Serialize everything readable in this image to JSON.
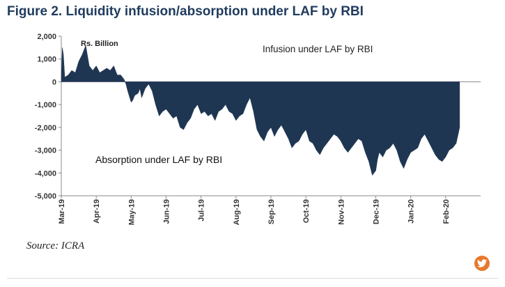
{
  "figure_title": "Figure 2. Liquidity infusion/absorption under LAF by RBI",
  "source": "Source: ICRA",
  "share_icon": "twitter-icon",
  "colors": {
    "area": "#1f3653",
    "title": "#1f3b5e",
    "share": "#e8792b"
  },
  "chart_data": {
    "type": "area",
    "unit_label": "Rs. Billion",
    "annotations": [
      "Infusion under LAF by RBI",
      "Absorption under LAF by RBI"
    ],
    "ylim": [
      -5000,
      2000
    ],
    "y_ticks": [
      "2,000",
      "1,000",
      "0",
      "-1,000",
      "-2,000",
      "-3,000",
      "-4,000",
      "-5,000"
    ],
    "y_tick_values": [
      2000,
      1000,
      0,
      -1000,
      -2000,
      -3000,
      -4000,
      -5000
    ],
    "x_ticks": [
      "Mar-19",
      "Apr-19",
      "May-19",
      "Jun-19",
      "Jul-19",
      "Aug-19",
      "Sep-19",
      "Oct-19",
      "Nov-19",
      "Dec-19",
      "Jan-20",
      "Feb-20"
    ],
    "grid": "none",
    "series": [
      {
        "x": [
          0,
          0.03,
          0.06,
          0.1,
          0.2,
          0.3,
          0.4,
          0.5,
          0.6,
          0.7,
          0.8,
          0.9,
          1.0,
          1.1,
          1.2,
          1.3,
          1.4,
          1.5,
          1.6,
          1.7,
          1.8,
          1.85,
          1.9,
          2.0,
          2.05,
          2.1,
          2.2,
          2.25,
          2.3,
          2.4,
          2.5,
          2.6,
          2.7,
          2.8,
          2.9,
          3.0,
          3.1,
          3.2,
          3.3,
          3.4,
          3.5,
          3.6,
          3.7,
          3.8,
          3.9,
          4.0,
          4.1,
          4.2,
          4.3,
          4.4,
          4.5,
          4.6,
          4.7,
          4.8,
          4.9,
          5.0,
          5.1,
          5.2,
          5.3,
          5.4,
          5.5,
          5.6,
          5.7,
          5.8,
          5.9,
          6.0,
          6.1,
          6.2,
          6.3,
          6.4,
          6.5,
          6.6,
          6.7,
          6.8,
          6.9,
          7.0,
          7.1,
          7.2,
          7.3,
          7.4,
          7.5,
          7.6,
          7.7,
          7.8,
          7.9,
          8.0,
          8.1,
          8.2,
          8.3,
          8.4,
          8.5,
          8.6,
          8.7,
          8.8,
          8.9,
          9.0,
          9.05,
          9.1,
          9.2,
          9.3,
          9.4,
          9.5,
          9.6,
          9.7,
          9.8,
          9.9,
          10.0,
          10.1,
          10.2,
          10.3,
          10.4,
          10.5,
          10.6,
          10.7,
          10.8,
          10.9,
          11.0,
          11.1,
          11.2,
          11.3,
          11.4
        ],
        "y": [
          300,
          1500,
          1200,
          200,
          300,
          500,
          400,
          900,
          1200,
          1600,
          700,
          500,
          700,
          400,
          500,
          600,
          500,
          700,
          300,
          300,
          100,
          -100,
          -400,
          -900,
          -800,
          -600,
          -500,
          -300,
          -700,
          -300,
          -100,
          -400,
          -1000,
          -1500,
          -1300,
          -1200,
          -1400,
          -1600,
          -1500,
          -2000,
          -2100,
          -1800,
          -1600,
          -1200,
          -1000,
          -1400,
          -1300,
          -1500,
          -1400,
          -1700,
          -1300,
          -1200,
          -1000,
          -1300,
          -1400,
          -1700,
          -1500,
          -1400,
          -1000,
          -700,
          -1300,
          -2100,
          -2400,
          -2600,
          -2200,
          -2000,
          -2400,
          -2100,
          -1900,
          -2200,
          -2500,
          -2900,
          -2700,
          -2600,
          -2300,
          -2100,
          -2600,
          -2700,
          -3000,
          -3200,
          -2900,
          -2700,
          -2500,
          -2300,
          -2400,
          -2600,
          -2900,
          -3100,
          -2900,
          -2700,
          -2500,
          -2600,
          -3100,
          -3500,
          -4100,
          -3900,
          -3400,
          -3100,
          -3300,
          -3000,
          -2900,
          -2700,
          -3000,
          -3500,
          -3800,
          -3400,
          -3100,
          -3000,
          -2900,
          -2500,
          -2300,
          -2600,
          -2900,
          -3200,
          -3400,
          -3500,
          -3300,
          -3000,
          -2900,
          -2700,
          -2000
        ]
      }
    ]
  }
}
